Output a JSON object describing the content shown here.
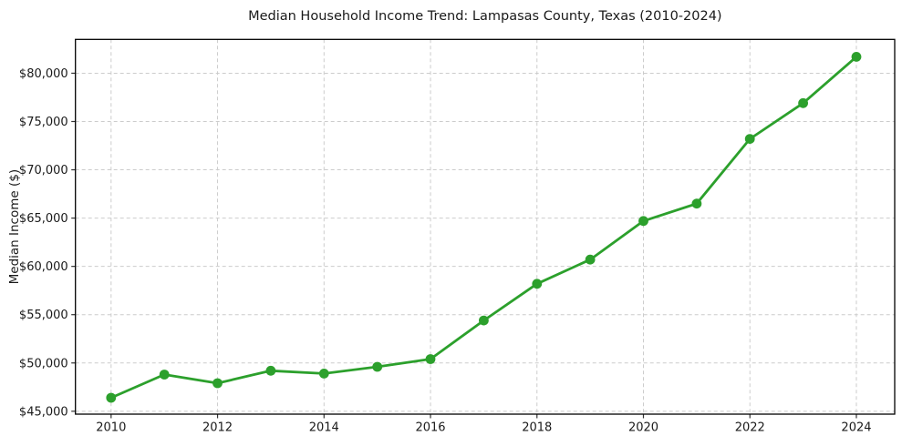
{
  "chart_data": {
    "type": "line",
    "title": "Median Household Income Trend: Lampasas County, Texas (2010-2024)",
    "xlabel": "",
    "ylabel": "Median Income ($)",
    "x": [
      2010,
      2011,
      2012,
      2013,
      2014,
      2015,
      2016,
      2017,
      2018,
      2019,
      2020,
      2021,
      2022,
      2023,
      2024
    ],
    "series": [
      {
        "name": "Median Household Income",
        "values": [
          46400,
          48800,
          47900,
          49200,
          48900,
          49600,
          50400,
          54400,
          58200,
          60700,
          64700,
          66500,
          73200,
          76900,
          81700
        ]
      }
    ],
    "xlim": [
      2009.33,
      2024.72
    ],
    "ylim": [
      44700,
      83500
    ],
    "xticks": [
      2010,
      2012,
      2014,
      2016,
      2018,
      2020,
      2022,
      2024
    ],
    "xtick_labels": [
      "2010",
      "2012",
      "2014",
      "2016",
      "2018",
      "2020",
      "2022",
      "2024"
    ],
    "yticks": [
      45000,
      50000,
      55000,
      60000,
      65000,
      70000,
      75000,
      80000
    ],
    "ytick_labels": [
      "$45,000",
      "$50,000",
      "$55,000",
      "$60,000",
      "$65,000",
      "$70,000",
      "$75,000",
      "$80,000"
    ],
    "grid": true,
    "grid_style": "dashed",
    "legend": false,
    "marker": "circle",
    "colors": {
      "line": "#2ca02c",
      "marker": "#2ca02c",
      "grid": "#cccccc",
      "spine": "#000000",
      "tick": "#333333",
      "background": "#ffffff"
    }
  }
}
